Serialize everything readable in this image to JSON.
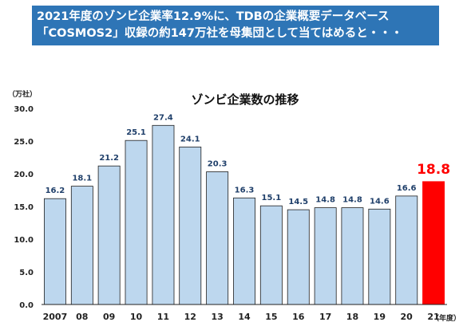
{
  "banner": {
    "line1": "2021年度のゾンビ企業率12.9%に、TDBの企業概要データベース",
    "line2": "「COSMOS2」収録の約147万社を母集団として当てはめると・・・",
    "bg_color": "#2e75b6"
  },
  "chart_data": {
    "type": "bar",
    "title": "ゾンビ企業数の推移",
    "ylabel": "（万社）",
    "xlabel": "（年度）",
    "categories": [
      "2007",
      "08",
      "09",
      "10",
      "11",
      "12",
      "13",
      "14",
      "15",
      "16",
      "17",
      "18",
      "19",
      "20",
      "21"
    ],
    "values": [
      16.2,
      18.1,
      21.2,
      25.1,
      27.4,
      24.1,
      20.3,
      16.3,
      15.1,
      14.5,
      14.8,
      14.8,
      14.6,
      16.6,
      18.8
    ],
    "value_labels": [
      "16.2",
      "18.1",
      "21.2",
      "25.1",
      "27.4",
      "24.1",
      "20.3",
      "16.3",
      "15.1",
      "14.5",
      "14.8",
      "14.8",
      "14.6",
      "16.6",
      "18.8"
    ],
    "yticks": [
      "0.0",
      "5.0",
      "10.0",
      "15.0",
      "20.0",
      "25.0",
      "30.0"
    ],
    "ylim": [
      0,
      30
    ],
    "grid": false,
    "highlight_index": 14,
    "colors": {
      "bar": "#bdd7ee",
      "bar_edge": "#1f1f1f",
      "highlight": "#ff0000",
      "label": "#1f3f6a"
    }
  }
}
